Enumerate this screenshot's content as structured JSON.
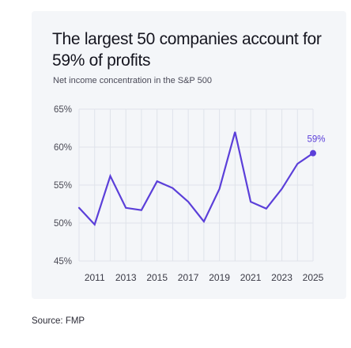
{
  "chart_data": {
    "type": "line",
    "title": "The largest 50 companies account for 59% of profits",
    "subtitle": "Net income concentration in the S&P 500",
    "xlabel": "",
    "ylabel": "",
    "x": [
      2010,
      2011,
      2012,
      2013,
      2014,
      2015,
      2016,
      2017,
      2018,
      2019,
      2020,
      2021,
      2022,
      2023,
      2024,
      2025
    ],
    "values": [
      52,
      49.8,
      56.2,
      52,
      51.7,
      55.5,
      54.6,
      52.8,
      50.2,
      54.5,
      62,
      52.8,
      51.9,
      54.5,
      57.8,
      59.2
    ],
    "x_ticks": [
      "2011",
      "2013",
      "2015",
      "2017",
      "2019",
      "2021",
      "2023",
      "2025"
    ],
    "y_ticks": [
      "45%",
      "50%",
      "55%",
      "60%",
      "65%"
    ],
    "ylim": [
      45,
      65
    ],
    "xlim": [
      2010,
      2025
    ],
    "grid": true,
    "line_color": "#5b3fd9",
    "end_label": "59%"
  },
  "source": "Source: FMP"
}
